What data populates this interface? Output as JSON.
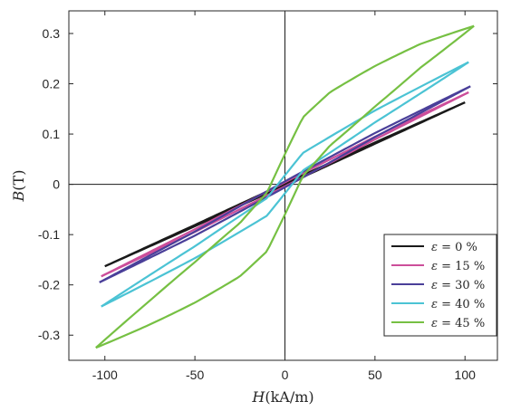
{
  "chart_data": {
    "type": "line",
    "title": "",
    "xlabel": {
      "symbol": "H",
      "unit": "(kA/m)"
    },
    "ylabel": {
      "symbol": "B",
      "unit": "(T)"
    },
    "xlim": [
      -120,
      118
    ],
    "ylim": [
      -0.35,
      0.345
    ],
    "x_ticks": [
      -100,
      -50,
      0,
      50,
      100
    ],
    "x_tick_labels": [
      "-100",
      "-50",
      "0",
      "50",
      "100"
    ],
    "y_ticks": [
      -0.3,
      -0.2,
      -0.1,
      0,
      0.1,
      0.2,
      0.3
    ],
    "y_tick_labels": [
      "-0.3",
      "-0.2",
      "-0.1",
      "0",
      "0.1",
      "0.2",
      "0.3"
    ],
    "grid": false,
    "zero_lines": true,
    "legend": "bottom-right",
    "series": [
      {
        "name": "ε = 0 %",
        "symbol": "ε",
        "label_rest": " = 0 %",
        "color": "#1a1a1a",
        "x": [
          -100,
          -50,
          0,
          50,
          100
        ],
        "y": [
          -0.163,
          -0.082,
          0.0,
          0.082,
          0.163
        ],
        "loop_width": 0.002
      },
      {
        "name": "ε = 15 %",
        "symbol": "ε",
        "label_rest": " = 15 %",
        "color": "#cc4e9a",
        "x": [
          -102,
          -50,
          0,
          50,
          102
        ],
        "y": [
          -0.183,
          -0.092,
          0.0,
          0.092,
          0.183
        ],
        "loop_width": 0.004
      },
      {
        "name": "ε = 30 %",
        "symbol": "ε",
        "label_rest": " = 30 %",
        "color": "#4a3f99",
        "x": [
          -103,
          -50,
          0,
          50,
          103
        ],
        "y": [
          -0.195,
          -0.098,
          0.0,
          0.098,
          0.195
        ],
        "loop_width": 0.006
      },
      {
        "name": "ε = 40 %",
        "symbol": "ε",
        "label_rest": " = 40 %",
        "color": "#4bc3d4",
        "x": [
          -102,
          -50,
          -10,
          0,
          10,
          50,
          102
        ],
        "y": [
          -0.243,
          -0.135,
          -0.045,
          0.0,
          0.045,
          0.135,
          0.243
        ],
        "loop_width": 0.018
      },
      {
        "name": "ε = 45 %",
        "symbol": "ε",
        "label_rest": " = 45 %",
        "color": "#76c043",
        "x": [
          -105,
          -75,
          -50,
          -25,
          -10,
          0,
          10,
          25,
          50,
          75,
          105
        ],
        "y": [
          -0.325,
          -0.255,
          -0.195,
          -0.13,
          -0.075,
          0.0,
          0.075,
          0.13,
          0.195,
          0.255,
          0.315
        ],
        "loop_width": 0.06
      }
    ]
  }
}
